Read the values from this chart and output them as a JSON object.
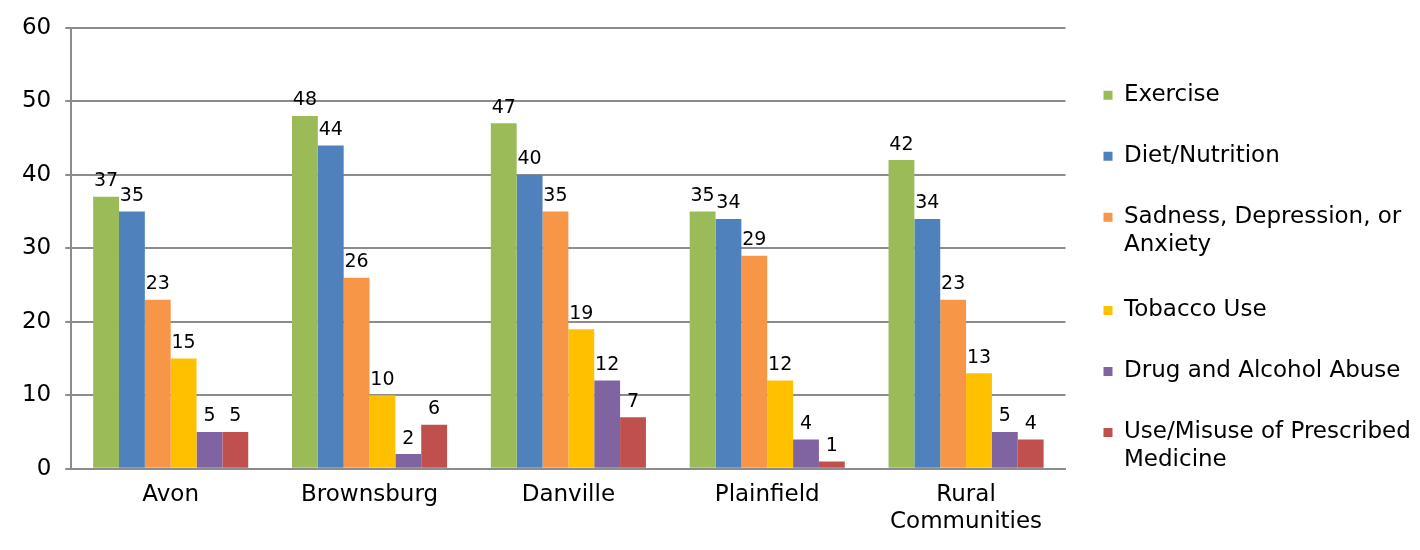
{
  "chart_data": {
    "type": "bar",
    "categories": [
      "Avon",
      "Brownsburg",
      "Danville",
      "Plainfield",
      "Rural Communities"
    ],
    "series": [
      {
        "name": "Exercise",
        "color": "#9bbb59",
        "values": [
          37,
          48,
          47,
          35,
          42
        ]
      },
      {
        "name": "Diet/Nutrition",
        "color": "#4f81bd",
        "values": [
          35,
          44,
          40,
          34,
          34
        ]
      },
      {
        "name": "Sadness, Depression, or Anxiety",
        "color": "#f79646",
        "values": [
          23,
          26,
          35,
          29,
          23
        ]
      },
      {
        "name": "Tobacco Use",
        "color": "#ffc000",
        "values": [
          15,
          10,
          19,
          12,
          13
        ]
      },
      {
        "name": "Drug and Alcohol Abuse",
        "color": "#8064a2",
        "values": [
          5,
          2,
          12,
          4,
          5
        ]
      },
      {
        "name": "Use/Misuse of Prescribed Medicine",
        "color": "#c0504d",
        "values": [
          5,
          6,
          7,
          1,
          4
        ]
      }
    ],
    "ylim": [
      0,
      60
    ],
    "yticks": [
      0,
      10,
      20,
      30,
      40,
      50,
      60
    ],
    "grid": "y",
    "legend": "right",
    "data_labels": true
  }
}
